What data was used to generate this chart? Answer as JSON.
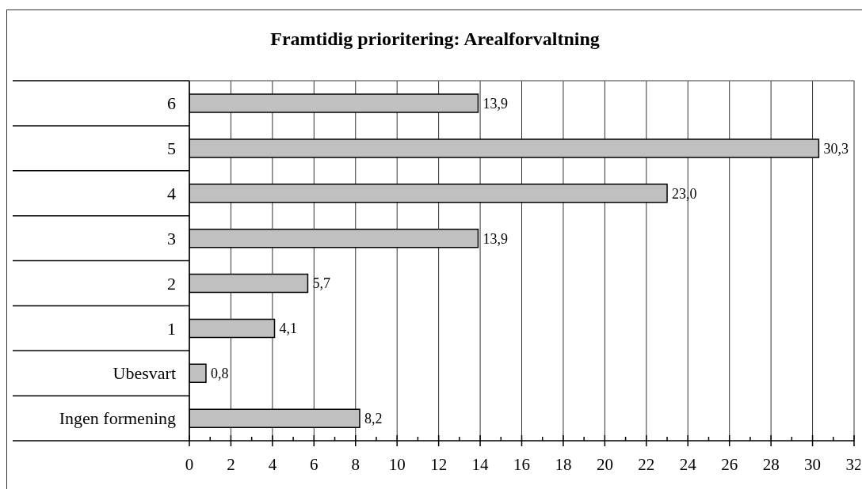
{
  "chart_data": {
    "type": "bar",
    "orientation": "horizontal",
    "title": "Framtidig prioritering: Arealforvaltning",
    "categories": [
      "6",
      "5",
      "4",
      "3",
      "2",
      "1",
      "Ubesvart",
      "Ingen formening"
    ],
    "values": [
      13.9,
      30.3,
      23.0,
      13.9,
      5.7,
      4.1,
      0.8,
      8.2
    ],
    "value_labels": [
      "13,9",
      "30,3",
      "23,0",
      "13,9",
      "5,7",
      "4,1",
      "0,8",
      "8,2"
    ],
    "color": "#c0c0c0",
    "xlim": [
      0,
      32
    ],
    "xticks": [
      0,
      {
        "value": 1,
        "label": null
      },
      2,
      {
        "value": 3,
        "label": null
      },
      4,
      {
        "value": 5,
        "label": null
      },
      6,
      {
        "value": 7,
        "label": null
      },
      8,
      {
        "value": 9,
        "label": null
      },
      10,
      {
        "value": 11,
        "label": null
      },
      12,
      {
        "value": 13,
        "label": null
      },
      14,
      {
        "value": 15,
        "label": null
      },
      16,
      {
        "value": 17,
        "label": null
      },
      18,
      {
        "value": 19,
        "label": null
      },
      20,
      {
        "value": 21,
        "label": null
      },
      22,
      {
        "value": 23,
        "label": null
      },
      24,
      {
        "value": 25,
        "label": null
      },
      26,
      {
        "value": 27,
        "label": null
      },
      28,
      {
        "value": 29,
        "label": null
      },
      30,
      {
        "value": 31,
        "label": null
      },
      32
    ],
    "grid": "x"
  }
}
